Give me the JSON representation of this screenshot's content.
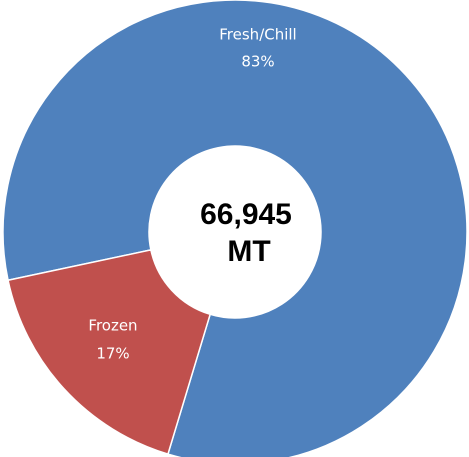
{
  "chart_data": {
    "type": "donut",
    "categories": [
      "Fresh/Chill",
      "Frozen"
    ],
    "values": [
      83,
      17
    ],
    "value_labels": [
      "83%",
      "17%"
    ],
    "colors": [
      "#4f81bd",
      "#c0504d"
    ],
    "annotations": [
      "66,945",
      "MT"
    ]
  }
}
